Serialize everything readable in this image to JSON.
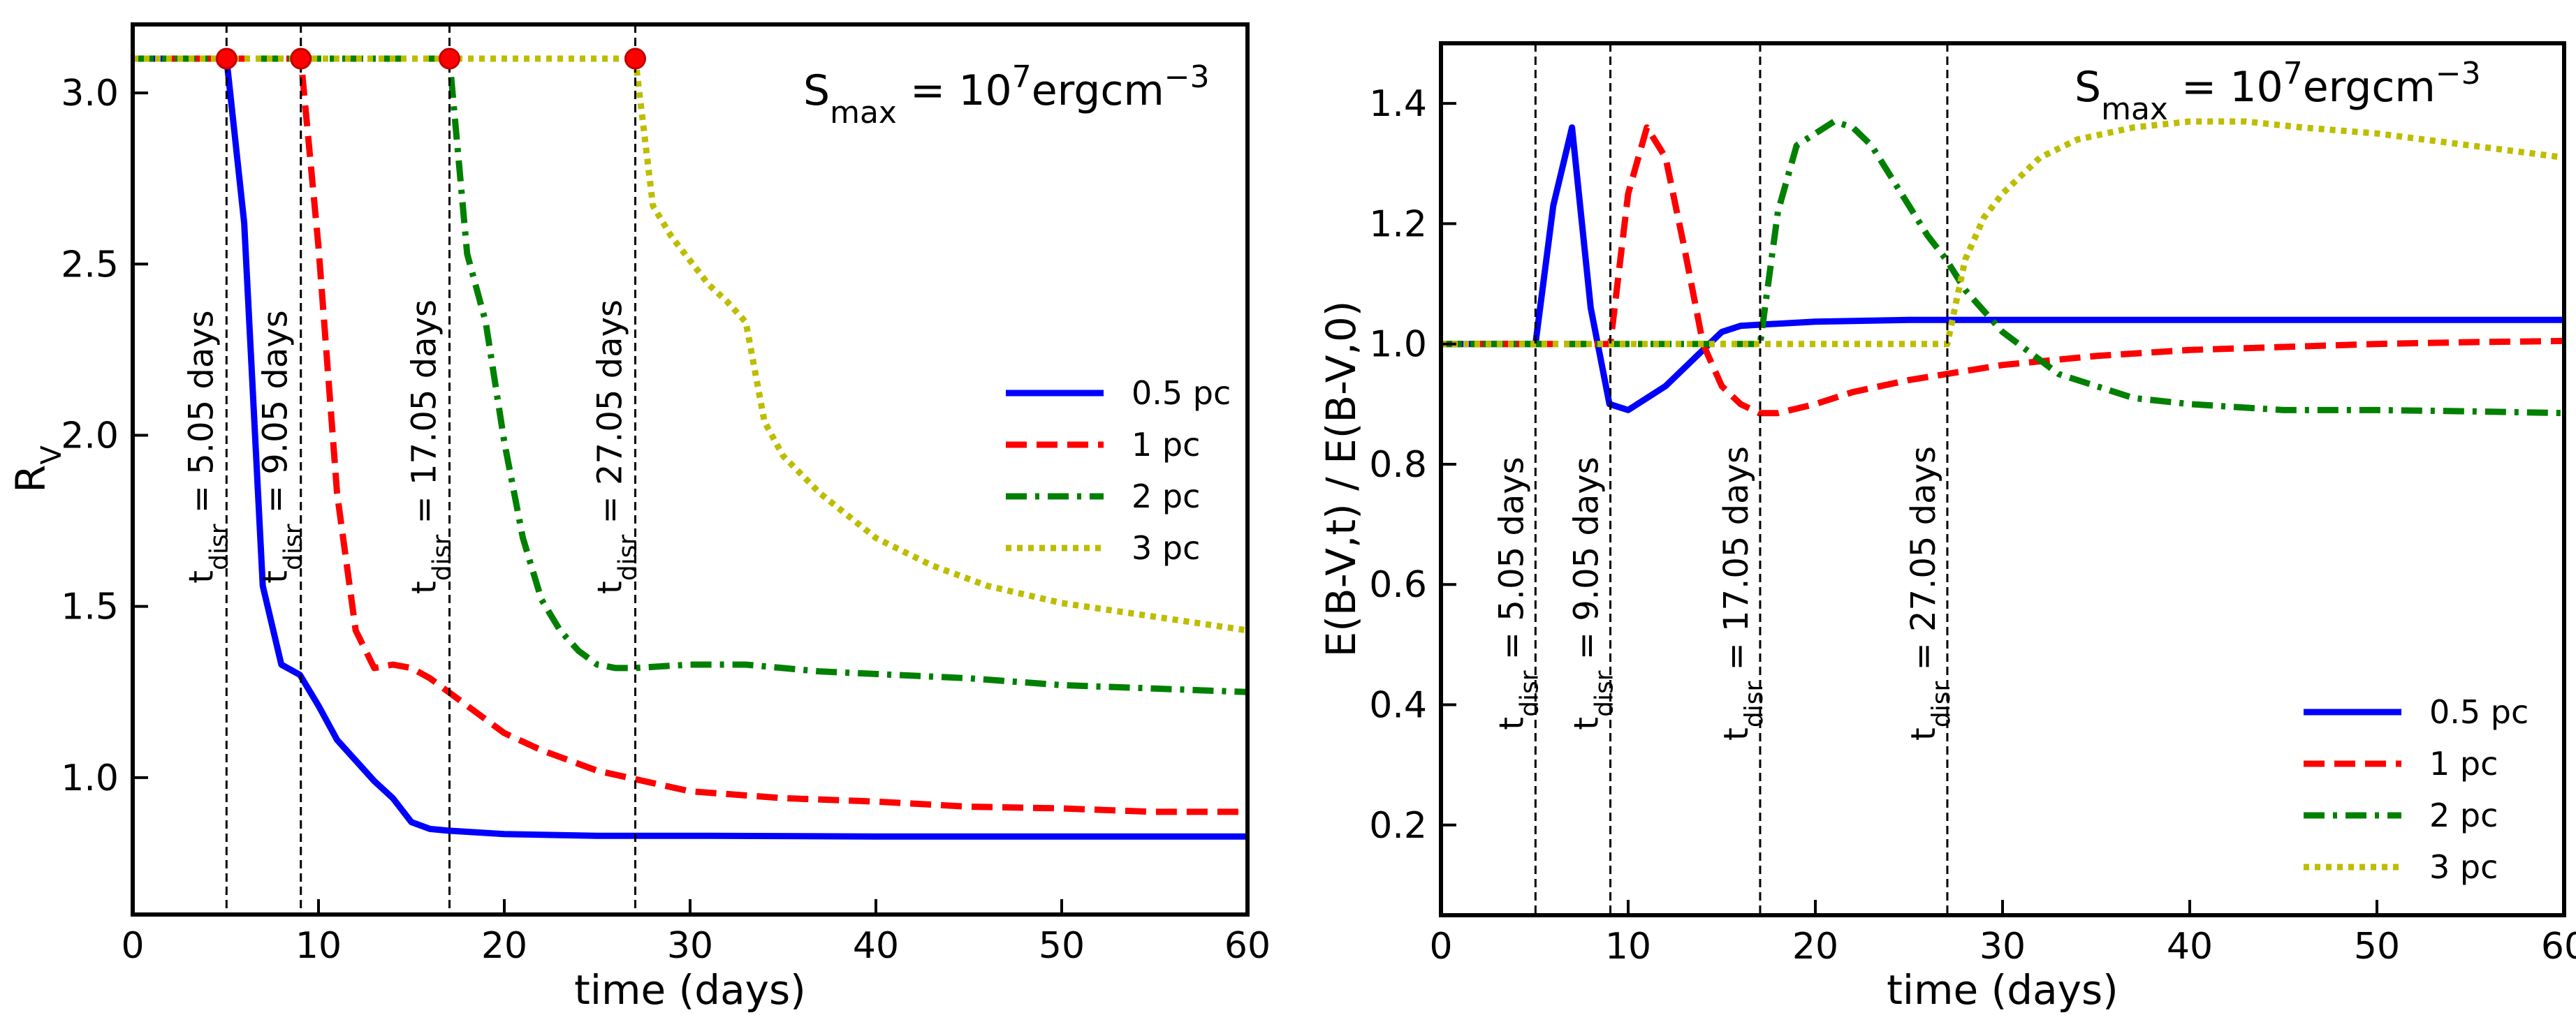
{
  "chart_data": [
    {
      "type": "line",
      "panel": "left",
      "title": "",
      "annotation": {
        "base": "S",
        "sub": "max",
        "mid": " = 10",
        "sup": "7",
        "tail": "ergcm",
        "sup2": "−3"
      },
      "xlabel": "time (days)",
      "ylabel": {
        "base": "R",
        "sub": "V"
      },
      "xlim": [
        0,
        60
      ],
      "ylim": [
        0.6,
        3.2
      ],
      "xticks": [
        0,
        10,
        20,
        30,
        40,
        50,
        60
      ],
      "xtick_labels": [
        "0",
        "10",
        "20",
        "30",
        "40",
        "50",
        "60"
      ],
      "yticks": [
        1.0,
        1.5,
        2.0,
        2.5,
        3.0
      ],
      "ytick_labels": [
        "1.0",
        "1.5",
        "2.0",
        "2.5",
        "3.0"
      ],
      "legend_position": "center-right",
      "vlines": [
        {
          "x": 5.05,
          "label": "5.05 days"
        },
        {
          "x": 9.05,
          "label": "9.05 days"
        },
        {
          "x": 17.05,
          "label": "17.05 days"
        },
        {
          "x": 27.05,
          "label": "27.05 days"
        }
      ],
      "vline_prefix": {
        "base": "t",
        "sub": "disr",
        "eq": " = "
      },
      "markers": [
        {
          "x": 5.05,
          "y": 3.1
        },
        {
          "x": 9.05,
          "y": 3.1
        },
        {
          "x": 17.05,
          "y": 3.1
        },
        {
          "x": 27.05,
          "y": 3.1
        }
      ],
      "series": [
        {
          "name": "0.5 pc",
          "color": "#0000ff",
          "dash": "solid",
          "x": [
            0,
            5.05,
            6,
            7,
            8,
            9,
            10,
            11,
            12,
            13,
            14,
            15,
            16,
            17,
            20,
            25,
            30,
            40,
            50,
            60
          ],
          "y": [
            3.1,
            3.1,
            2.62,
            1.56,
            1.33,
            1.3,
            1.21,
            1.11,
            1.05,
            0.99,
            0.94,
            0.87,
            0.85,
            0.845,
            0.835,
            0.83,
            0.83,
            0.828,
            0.828,
            0.828
          ]
        },
        {
          "name": "1 pc",
          "color": "#ff0000",
          "dash": "dashed",
          "x": [
            0,
            9.05,
            10,
            11,
            12,
            13,
            14,
            15,
            16,
            17,
            18,
            20,
            22,
            25,
            30,
            35,
            40,
            45,
            50,
            55,
            60
          ],
          "y": [
            3.1,
            3.1,
            2.55,
            1.83,
            1.43,
            1.32,
            1.33,
            1.32,
            1.29,
            1.25,
            1.21,
            1.13,
            1.08,
            1.02,
            0.96,
            0.94,
            0.93,
            0.915,
            0.91,
            0.9,
            0.9
          ]
        },
        {
          "name": "2 pc",
          "color": "#008000",
          "dash": "dashdot",
          "x": [
            0,
            17.05,
            18,
            19,
            20,
            21,
            22,
            23,
            24,
            25,
            26,
            27,
            30,
            33,
            37,
            45,
            50,
            55,
            60
          ],
          "y": [
            3.1,
            3.1,
            2.53,
            2.33,
            1.98,
            1.7,
            1.52,
            1.43,
            1.37,
            1.33,
            1.32,
            1.32,
            1.33,
            1.33,
            1.31,
            1.29,
            1.27,
            1.26,
            1.25
          ]
        },
        {
          "name": "3 pc",
          "color": "#bdbd00",
          "dash": "dotted",
          "x": [
            0,
            27.05,
            28,
            29,
            30,
            31,
            32,
            33,
            34,
            35,
            37,
            40,
            43,
            46,
            50,
            55,
            60
          ],
          "y": [
            3.1,
            3.1,
            2.67,
            2.58,
            2.51,
            2.44,
            2.39,
            2.33,
            2.04,
            1.94,
            1.83,
            1.7,
            1.62,
            1.56,
            1.51,
            1.47,
            1.43
          ]
        }
      ]
    },
    {
      "type": "line",
      "panel": "right",
      "title": "",
      "annotation": {
        "base": "S",
        "sub": "max",
        "mid": " = 10",
        "sup": "7",
        "tail": "ergcm",
        "sup2": "−3"
      },
      "xlabel": "time (days)",
      "ylabel": "E(B-V,t) / E(B-V,0)",
      "xlim": [
        0,
        60
      ],
      "ylim": [
        0.05,
        1.5
      ],
      "xticks": [
        0,
        10,
        20,
        30,
        40,
        50,
        60
      ],
      "xtick_labels": [
        "0",
        "10",
        "20",
        "30",
        "40",
        "50",
        "60"
      ],
      "yticks": [
        0.2,
        0.4,
        0.6,
        0.8,
        1.0,
        1.2,
        1.4
      ],
      "ytick_labels": [
        "0.2",
        "0.4",
        "0.6",
        "0.8",
        "1.0",
        "1.2",
        "1.4"
      ],
      "legend_position": "lower-right",
      "vlines": [
        {
          "x": 5.05,
          "label": "5.05 days"
        },
        {
          "x": 9.05,
          "label": "9.05 days"
        },
        {
          "x": 17.05,
          "label": "17.05 days"
        },
        {
          "x": 27.05,
          "label": "27.05 days"
        }
      ],
      "vline_prefix": {
        "base": "t",
        "sub": "disr",
        "eq": " = "
      },
      "series": [
        {
          "name": "0.5 pc",
          "color": "#0000ff",
          "dash": "solid",
          "x": [
            0,
            5.05,
            6,
            7,
            8,
            9,
            10,
            11,
            12,
            13,
            14,
            15,
            16,
            17,
            20,
            25,
            30,
            40,
            50,
            60
          ],
          "y": [
            1.0,
            1.0,
            1.23,
            1.36,
            1.06,
            0.9,
            0.89,
            0.91,
            0.93,
            0.96,
            0.99,
            1.02,
            1.03,
            1.032,
            1.037,
            1.04,
            1.04,
            1.04,
            1.04,
            1.04
          ]
        },
        {
          "name": "1 pc",
          "color": "#ff0000",
          "dash": "dashed",
          "x": [
            0,
            9.05,
            10,
            11,
            12,
            13,
            14,
            15,
            16,
            17,
            18,
            20,
            22,
            25,
            30,
            35,
            40,
            45,
            50,
            55,
            60
          ],
          "y": [
            1.0,
            1.0,
            1.25,
            1.36,
            1.31,
            1.16,
            1.0,
            0.93,
            0.9,
            0.885,
            0.885,
            0.9,
            0.92,
            0.94,
            0.965,
            0.98,
            0.99,
            0.995,
            1.0,
            1.003,
            1.005
          ]
        },
        {
          "name": "2 pc",
          "color": "#008000",
          "dash": "dashdot",
          "x": [
            0,
            17.05,
            18,
            19,
            20,
            21,
            22,
            23,
            24,
            25,
            26,
            27,
            28,
            30,
            33,
            37,
            40,
            45,
            50,
            55,
            60
          ],
          "y": [
            1.0,
            1.0,
            1.22,
            1.33,
            1.35,
            1.37,
            1.36,
            1.33,
            1.28,
            1.23,
            1.18,
            1.14,
            1.09,
            1.02,
            0.95,
            0.91,
            0.9,
            0.89,
            0.89,
            0.888,
            0.885
          ]
        },
        {
          "name": "3 pc",
          "color": "#bdbd00",
          "dash": "dotted",
          "x": [
            0,
            27.05,
            28,
            29,
            30,
            32,
            34,
            37,
            40,
            43,
            46,
            50,
            55,
            60
          ],
          "y": [
            1.0,
            1.0,
            1.14,
            1.21,
            1.25,
            1.31,
            1.34,
            1.36,
            1.37,
            1.37,
            1.36,
            1.35,
            1.33,
            1.31
          ]
        }
      ]
    }
  ]
}
